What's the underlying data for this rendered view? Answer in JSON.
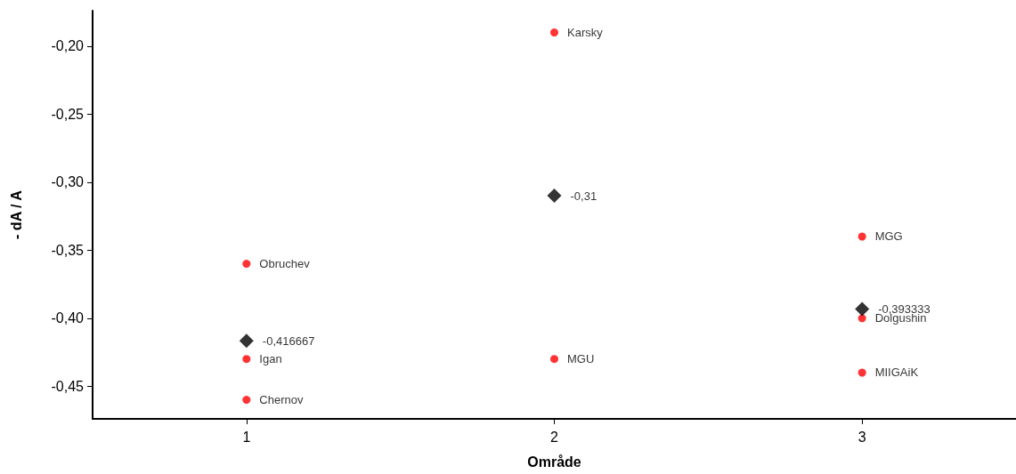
{
  "chart_data": {
    "type": "scatter",
    "xlabel": "Område",
    "ylabel": "- dA / A",
    "xlim": [
      0.5,
      3.5
    ],
    "xticks": [
      1,
      2,
      3
    ],
    "ylim": [
      -0.474,
      -0.174
    ],
    "yticks": [
      {
        "value": -0.45,
        "label": "-0,45"
      },
      {
        "value": -0.4,
        "label": "-0,40"
      },
      {
        "value": -0.35,
        "label": "-0,35"
      },
      {
        "value": -0.3,
        "label": "-0,30"
      },
      {
        "value": -0.25,
        "label": "-0,25"
      },
      {
        "value": -0.2,
        "label": "-0,20"
      }
    ],
    "grid": false,
    "series": [
      {
        "color": "#ff0000",
        "marker": "circle",
        "x": [
          1,
          1,
          1,
          2,
          2,
          3,
          3,
          3
        ],
        "values": [
          -0.36,
          -0.43,
          -0.46,
          -0.19,
          -0.43,
          -0.34,
          -0.4,
          -0.44
        ],
        "value_labels": [
          "Obruchev",
          "Igan",
          "Chernov",
          "Karsky",
          "MGU",
          "MGG",
          "Dolgushin",
          "MIIGAiK"
        ]
      },
      {
        "color": "#000000",
        "marker": "diamond",
        "x": [
          1,
          2,
          3
        ],
        "values": [
          -0.416667,
          -0.31,
          -0.393333
        ],
        "value_labels": [
          "-0,416667",
          "-0,31",
          "-0,393333"
        ]
      }
    ]
  }
}
